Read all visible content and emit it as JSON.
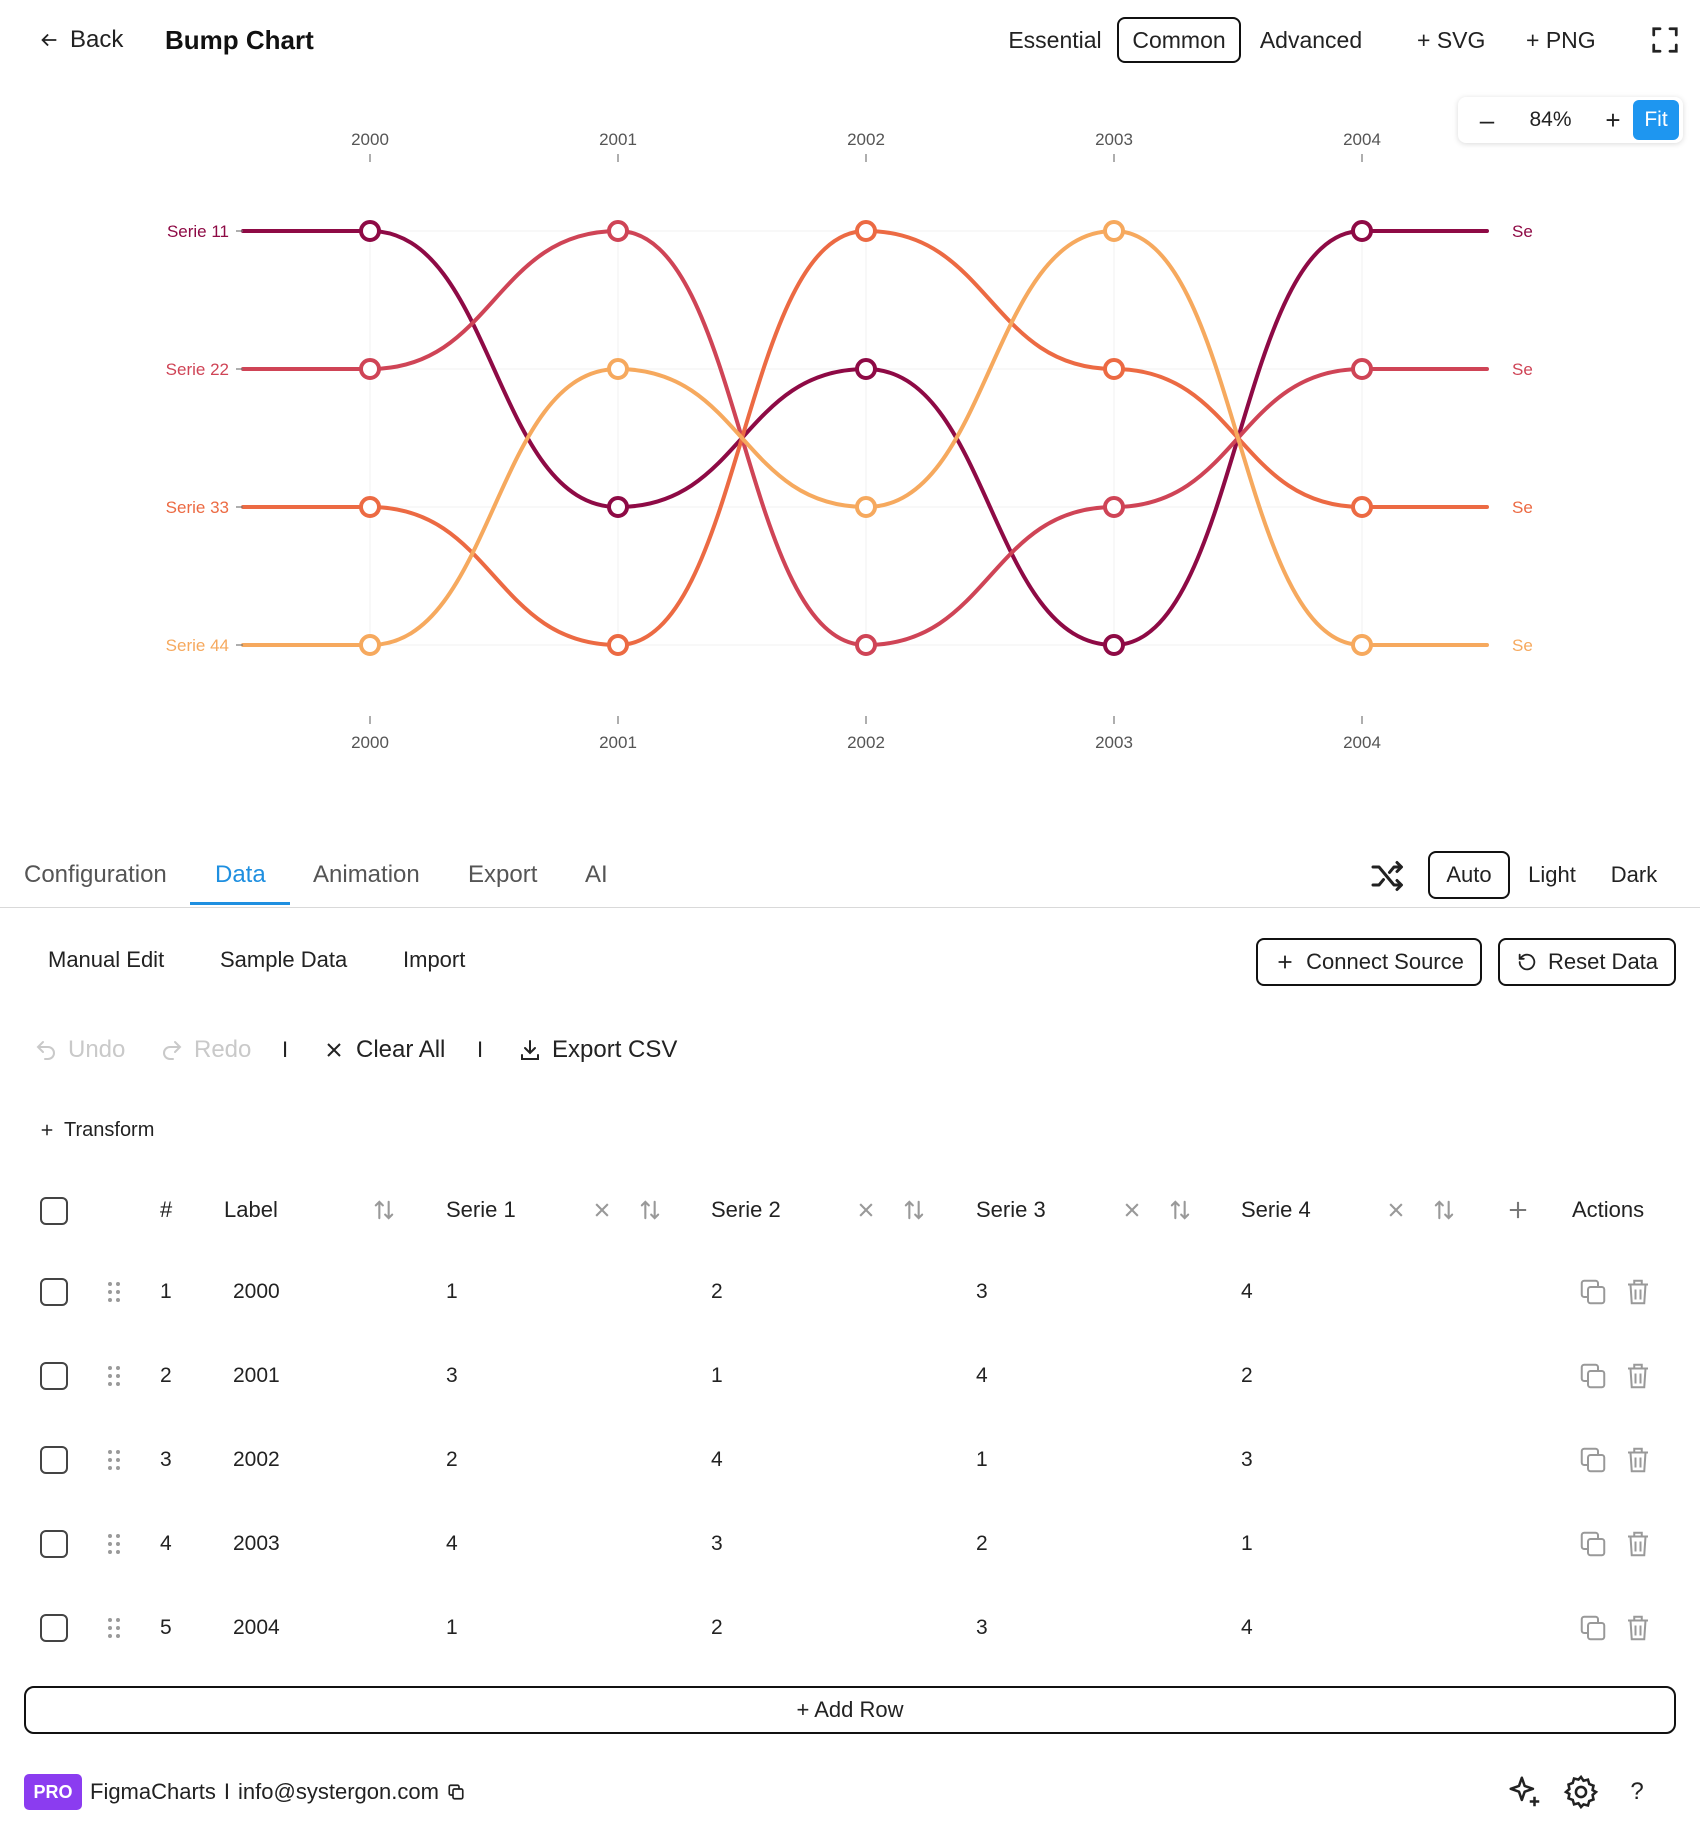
{
  "header": {
    "back_label": "Back",
    "title": "Bump Chart",
    "mode_tabs": [
      "Essential",
      "Common",
      "Advanced"
    ],
    "active_mode": "Common",
    "export_svg_label": "+ SVG",
    "export_png_label": "+ PNG"
  },
  "zoom": {
    "out_label": "–",
    "level": "84%",
    "in_label": "+",
    "fit_label": "Fit"
  },
  "chart_data": {
    "type": "line",
    "title": "",
    "x": [
      "2000",
      "2001",
      "2002",
      "2003",
      "2004"
    ],
    "y_axis_labels": [
      "Serie 11",
      "Serie 22",
      "Serie 33",
      "Serie 44"
    ],
    "right_labels": [
      "Se",
      "Se",
      "Se",
      "Se"
    ],
    "ylim": [
      1,
      4
    ],
    "y_inverted": true,
    "grid": true,
    "series": [
      {
        "name": "Serie 1",
        "values": [
          1,
          3,
          2,
          4,
          1
        ],
        "color": "#8e0a45"
      },
      {
        "name": "Serie 2",
        "values": [
          2,
          1,
          4,
          3,
          2
        ],
        "color": "#cf4456"
      },
      {
        "name": "Serie 3",
        "values": [
          3,
          4,
          1,
          2,
          3
        ],
        "color": "#ec6a43"
      },
      {
        "name": "Serie 4",
        "values": [
          4,
          2,
          3,
          1,
          4
        ],
        "color": "#f6a95e"
      }
    ]
  },
  "section_tabs": [
    "Configuration",
    "Data",
    "Animation",
    "Export",
    "AI"
  ],
  "active_section": "Data",
  "theme": {
    "options": [
      "Auto",
      "Light",
      "Dark"
    ],
    "active": "Auto"
  },
  "data_tabs": [
    "Manual Edit",
    "Sample Data",
    "Import"
  ],
  "buttons": {
    "connect_source": "Connect Source",
    "reset_data": "Reset Data",
    "undo": "Undo",
    "redo": "Redo",
    "separator": "I",
    "clear_all": "Clear All",
    "export_csv": "Export CSV",
    "transform": "Transform",
    "add_row": "+ Add Row"
  },
  "table": {
    "columns": {
      "index": "#",
      "label": "Label",
      "serie1": "Serie 1",
      "serie2": "Serie 2",
      "serie3": "Serie 3",
      "serie4": "Serie 4",
      "actions": "Actions"
    },
    "rows": [
      {
        "n": "1",
        "label": "2000",
        "s1": "1",
        "s2": "2",
        "s3": "3",
        "s4": "4"
      },
      {
        "n": "2",
        "label": "2001",
        "s1": "3",
        "s2": "1",
        "s3": "4",
        "s4": "2"
      },
      {
        "n": "3",
        "label": "2002",
        "s1": "2",
        "s2": "4",
        "s3": "1",
        "s4": "3"
      },
      {
        "n": "4",
        "label": "2003",
        "s1": "4",
        "s2": "3",
        "s3": "2",
        "s4": "1"
      },
      {
        "n": "5",
        "label": "2004",
        "s1": "1",
        "s2": "2",
        "s3": "3",
        "s4": "4"
      }
    ]
  },
  "footer": {
    "badge": "PRO",
    "brand": "FigmaCharts",
    "separator": "I",
    "email": "info@systergon.com",
    "help": "?"
  }
}
